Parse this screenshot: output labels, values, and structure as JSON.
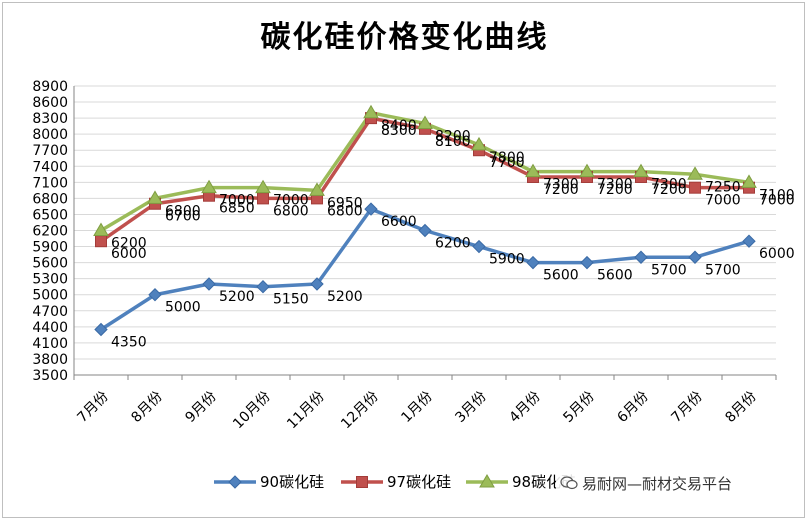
{
  "chart_data": {
    "type": "line",
    "title": "碳化硅价格变化曲线",
    "categories": [
      "7月份",
      "8月份",
      "9月份",
      "10月份",
      "11月份",
      "12月份",
      "1月份",
      "3月份",
      "4月份",
      "5月份",
      "6月份",
      "7月份",
      "8月份"
    ],
    "yticks": [
      3500,
      3800,
      4100,
      4400,
      4700,
      5000,
      5300,
      5600,
      5900,
      6200,
      6500,
      6800,
      7100,
      7400,
      7700,
      8000,
      8300,
      8600,
      8900
    ],
    "ylim": [
      3500,
      8900
    ],
    "grid": true,
    "legend_position": "bottom",
    "series": [
      {
        "name": "90碳化硅",
        "color": "#4f81bd",
        "marker": "diamond",
        "values": [
          4350,
          5000,
          5200,
          5150,
          5200,
          6600,
          6200,
          5900,
          5600,
          5600,
          5700,
          5700,
          6000
        ]
      },
      {
        "name": "97碳化硅",
        "color": "#c0504d",
        "marker": "square",
        "values": [
          6000,
          6700,
          6850,
          6800,
          6800,
          8300,
          8100,
          7700,
          7200,
          7200,
          7200,
          7000,
          7000
        ]
      },
      {
        "name": "98碳化硅",
        "color": "#9bbb59",
        "marker": "triangle",
        "values": [
          6200,
          6800,
          7000,
          7000,
          6950,
          8400,
          8200,
          7800,
          7300,
          7300,
          7300,
          7250,
          7100
        ]
      }
    ]
  },
  "watermark": {
    "text": "易耐网—耐材交易平台",
    "icon": "wechat-icon"
  }
}
